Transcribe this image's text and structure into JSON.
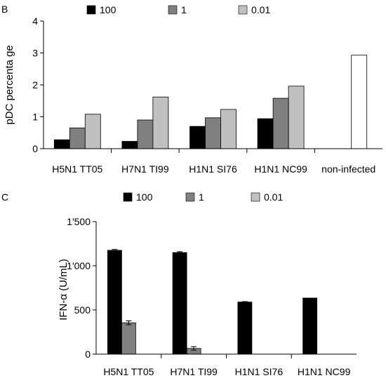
{
  "chart_data": [
    {
      "panel_label": "B",
      "type": "bar",
      "ylabel": "pDC percenta ge",
      "ylim": [
        0,
        4
      ],
      "yticks": [
        "0",
        "1",
        "2",
        "3",
        "4"
      ],
      "categories": [
        "H5N1 TT05",
        "H7N1 TI99",
        "H1N1 SI76",
        "H1N1 NC99",
        "non-infected"
      ],
      "series": [
        {
          "name": "100",
          "color": "#000000",
          "values": [
            0.28,
            0.23,
            0.7,
            0.94,
            null
          ]
        },
        {
          "name": "1",
          "color": "#808080",
          "values": [
            0.65,
            0.9,
            0.97,
            1.58,
            null
          ]
        },
        {
          "name": "0.01",
          "color": "#c0c0c0",
          "values": [
            1.08,
            1.62,
            1.23,
            1.96,
            null
          ]
        }
      ],
      "extra_bars": [
        {
          "category": "non-infected",
          "value": 2.93,
          "color": "#ffffff"
        }
      ],
      "legend_position": "top"
    },
    {
      "panel_label": "C",
      "type": "bar",
      "ylabel": "IFN-α (U/mL)",
      "ylim": [
        0,
        1500
      ],
      "yticks": [
        "0",
        "500",
        "1'000",
        "1'500"
      ],
      "categories": [
        "H5N1 TT05",
        "H7N1 TI99",
        "H1N1 SI76",
        "H1N1 NC99"
      ],
      "series": [
        {
          "name": "100",
          "color": "#000000",
          "values": [
            1175,
            1150,
            590,
            635
          ],
          "errors": [
            10,
            10,
            5,
            0
          ]
        },
        {
          "name": "1",
          "color": "#808080",
          "values": [
            355,
            65,
            0,
            0
          ],
          "errors": [
            22,
            20,
            0,
            0
          ]
        },
        {
          "name": "0.01",
          "color": "#c0c0c0",
          "values": [
            0,
            0,
            0,
            0
          ],
          "errors": [
            0,
            0,
            0,
            0
          ]
        }
      ],
      "legend_position": "top"
    }
  ]
}
